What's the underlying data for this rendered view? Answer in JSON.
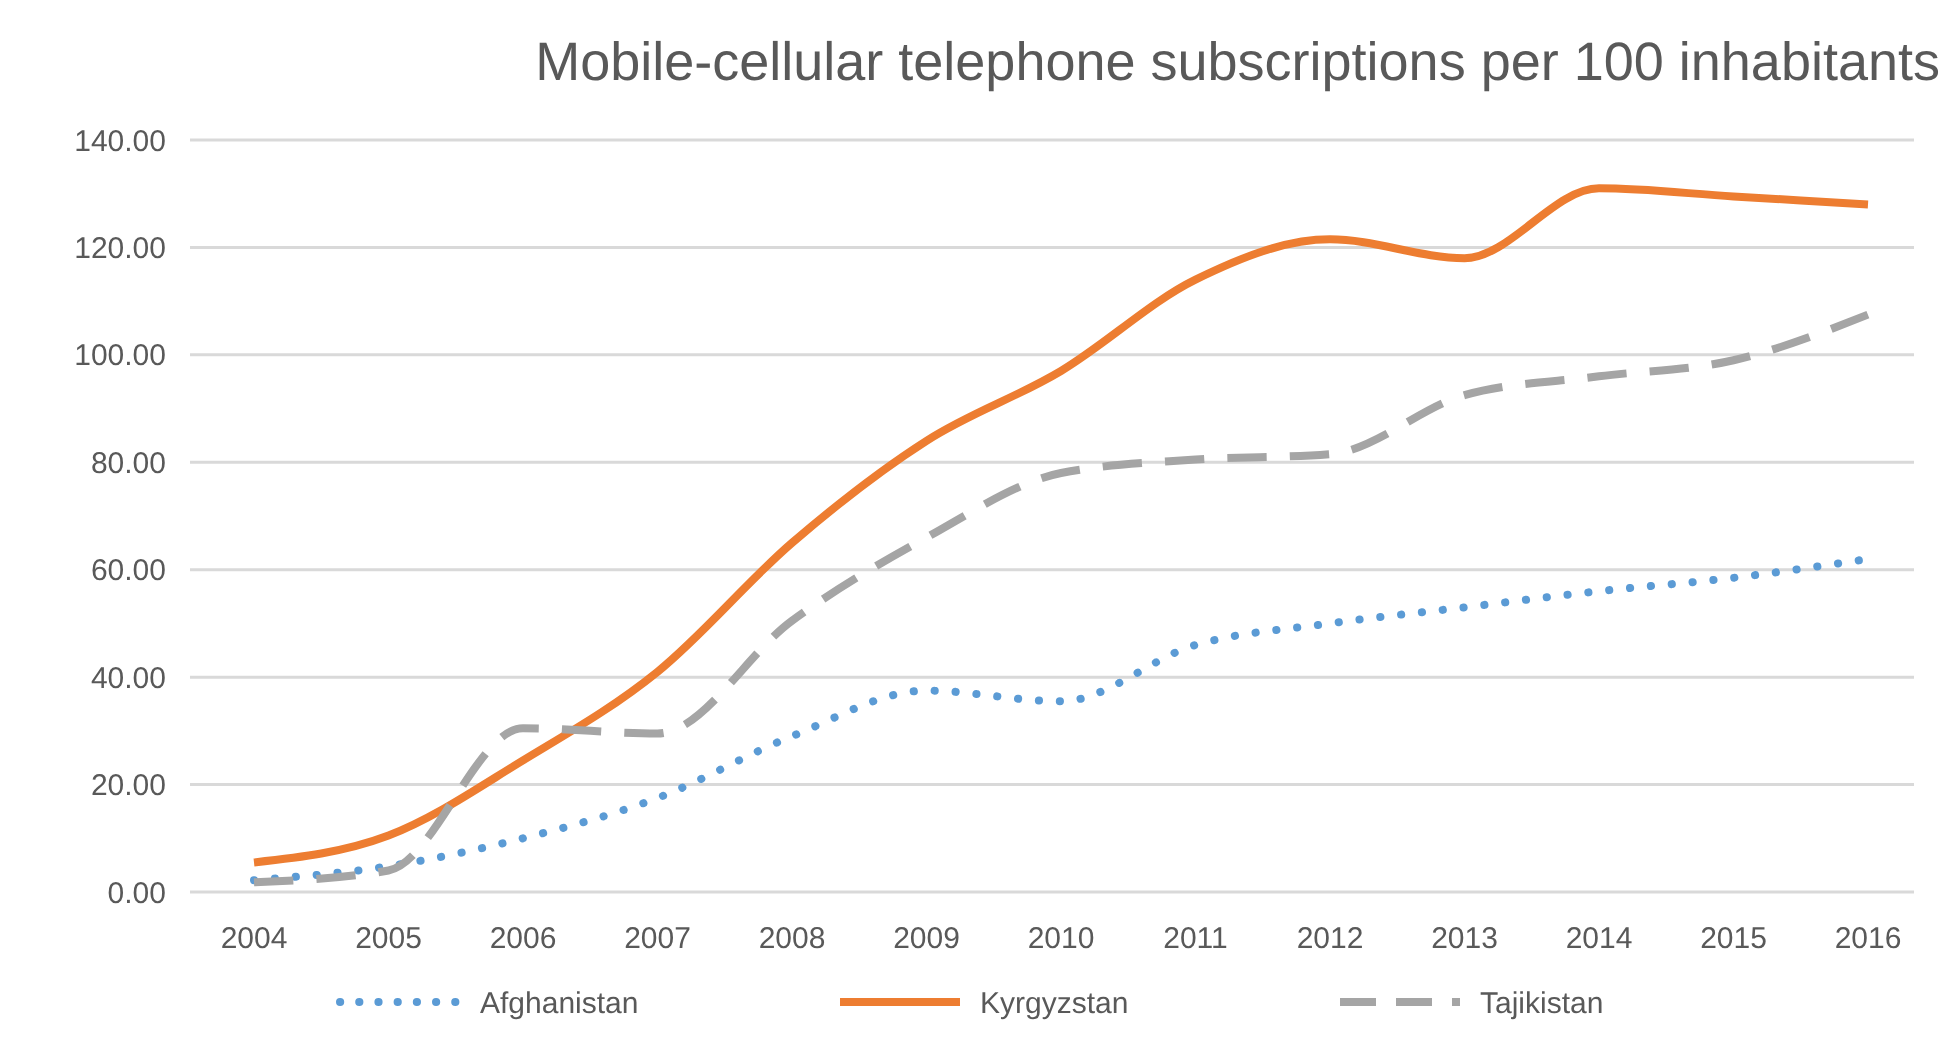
{
  "chart_data": {
    "type": "line",
    "title": "Mobile-cellular telephone subscriptions per 100 inhabitants",
    "categories": [
      "2004",
      "2005",
      "2006",
      "2007",
      "2008",
      "2009",
      "2010",
      "2011",
      "2012",
      "2013",
      "2014",
      "2015",
      "2016"
    ],
    "series": [
      {
        "name": "Afghanistan",
        "color": "#5b9bd5",
        "line_style": "dotted",
        "values": [
          2.2,
          4.8,
          10,
          17.5,
          29,
          37.5,
          35.5,
          46,
          50,
          53,
          56,
          58.5,
          62
        ]
      },
      {
        "name": "Kyrgyzstan",
        "color": "#ed7d31",
        "line_style": "solid",
        "values": [
          5.5,
          10.5,
          24.5,
          41,
          65,
          84,
          97,
          114,
          121.5,
          118,
          131,
          129.5,
          128
        ]
      },
      {
        "name": "Tajikistan",
        "color": "#a5a5a5",
        "line_style": "dashed",
        "values": [
          1.8,
          4,
          30.5,
          29.5,
          50.5,
          66,
          78,
          80.5,
          81.5,
          92.5,
          96,
          99,
          107.5
        ]
      }
    ],
    "ylim": [
      0,
      140
    ],
    "yticks": [
      {
        "value": 0,
        "label": "0.00"
      },
      {
        "value": 20,
        "label": "20.00"
      },
      {
        "value": 40,
        "label": "40.00"
      },
      {
        "value": 60,
        "label": "60.00"
      },
      {
        "value": 80,
        "label": "80.00"
      },
      {
        "value": 100,
        "label": "100.00"
      },
      {
        "value": 120,
        "label": "120.00"
      },
      {
        "value": 140,
        "label": "140.00"
      }
    ],
    "grid": "y",
    "legend": "bottom",
    "marker": "none"
  }
}
